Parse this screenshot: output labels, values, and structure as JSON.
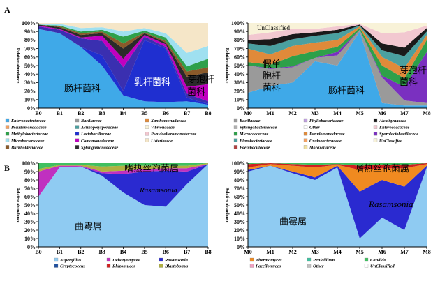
{
  "panel_letters": {
    "a": "A",
    "b": "B"
  },
  "chart_data": [
    {
      "id": "A-left",
      "type": "area",
      "stacked": true,
      "categories": [
        "B0",
        "B1",
        "B2",
        "B3",
        "B4",
        "B5",
        "B6",
        "B7",
        "B8"
      ],
      "ylim": [
        0,
        100
      ],
      "ytick_labels": [
        "0%",
        "10%",
        "20%",
        "30%",
        "40%",
        "50%",
        "60%",
        "70%",
        "80%",
        "90%",
        "100%"
      ],
      "ylabel": "Relative abundance",
      "series": [
        {
          "color": "#3fa9e8",
          "values": [
            93,
            88,
            72,
            50,
            15,
            8,
            7,
            8,
            4
          ]
        },
        {
          "color": "#1f2fd0",
          "values": [
            0,
            0,
            0,
            12,
            5,
            72,
            63,
            4,
            1
          ]
        },
        {
          "color": "#3a2fb0",
          "values": [
            3,
            4,
            10,
            17,
            28,
            4,
            2,
            5,
            3
          ]
        },
        {
          "color": "#c000c0",
          "values": [
            1,
            1,
            1,
            6,
            10,
            2,
            3,
            8,
            20
          ]
        },
        {
          "color": "#2a2a2a",
          "values": [
            1,
            2,
            3,
            3,
            12,
            2,
            2,
            12,
            14
          ]
        },
        {
          "color": "#8a5a2a",
          "values": [
            0,
            1,
            2,
            2,
            6,
            1,
            2,
            6,
            6
          ]
        },
        {
          "color": "#2ea04a",
          "values": [
            0,
            1,
            2,
            2,
            8,
            2,
            4,
            6,
            10
          ]
        },
        {
          "color": "#9fe0f0",
          "values": [
            1,
            2,
            4,
            3,
            6,
            3,
            5,
            16,
            15
          ]
        },
        {
          "color": "#f5e6c8",
          "values": [
            1,
            1,
            6,
            5,
            10,
            6,
            12,
            35,
            27
          ]
        }
      ],
      "annotations": [
        {
          "text": "肠杆菌科",
          "color": "#000000"
        },
        {
          "text": "乳杆菌科",
          "color": "#ffffff"
        },
        {
          "text": "芽孢杆",
          "color": "#000000"
        },
        {
          "text": "菌科",
          "color": "#000000"
        }
      ]
    },
    {
      "id": "A-right",
      "type": "area",
      "stacked": true,
      "categories": [
        "M0",
        "M1",
        "M2",
        "M3",
        "M4",
        "M5",
        "M6",
        "M7",
        "M8"
      ],
      "ylim": [
        0,
        100
      ],
      "ytick_labels": [
        "0%",
        "10%",
        "20%",
        "30%",
        "40%",
        "50%",
        "60%",
        "70%",
        "80%",
        "90%",
        "100%"
      ],
      "ylabel": "Relative abundance",
      "series": [
        {
          "color": "#3fa9e8",
          "values": [
            18,
            26,
            30,
            55,
            50,
            90,
            6,
            3,
            3
          ]
        },
        {
          "color": "#9a9a9a",
          "values": [
            32,
            20,
            18,
            4,
            12,
            2,
            30,
            6,
            3
          ]
        },
        {
          "color": "#7a30c0",
          "values": [
            0,
            1,
            1,
            0,
            4,
            0,
            2,
            16,
            60
          ]
        },
        {
          "color": "#2ea04a",
          "values": [
            4,
            4,
            12,
            8,
            6,
            2,
            12,
            10,
            14
          ]
        },
        {
          "color": "#e08a3a",
          "values": [
            16,
            12,
            12,
            10,
            8,
            2,
            10,
            12,
            6
          ]
        },
        {
          "color": "#4aa0a0",
          "values": [
            6,
            10,
            8,
            8,
            8,
            1,
            8,
            14,
            4
          ]
        },
        {
          "color": "#1a1a1a",
          "values": [
            4,
            8,
            6,
            4,
            4,
            1,
            8,
            10,
            4
          ]
        },
        {
          "color": "#f2c8d0",
          "values": [
            6,
            8,
            6,
            4,
            4,
            1,
            12,
            18,
            3
          ]
        },
        {
          "color": "#f8f2d8",
          "values": [
            14,
            11,
            7,
            7,
            4,
            1,
            12,
            11,
            3
          ]
        }
      ],
      "annotations": [
        {
          "text": "UnClassified",
          "color": "#000000"
        },
        {
          "text": "假单",
          "color": "#000000"
        },
        {
          "text": "胞杆",
          "color": "#000000"
        },
        {
          "text": "菌科",
          "color": "#000000"
        },
        {
          "text": "肠杆菌科",
          "color": "#000000"
        },
        {
          "text": "芽孢杆",
          "color": "#000000"
        },
        {
          "text": "菌科",
          "color": "#000000"
        }
      ]
    },
    {
      "id": "B-left",
      "type": "area",
      "stacked": true,
      "categories": [
        "B0",
        "B1",
        "B2",
        "B3",
        "B4",
        "B5",
        "B6",
        "B7",
        "B8"
      ],
      "ylim": [
        0,
        100
      ],
      "ytick_labels": [
        "0%",
        "10%",
        "20%",
        "30%",
        "40%",
        "50%",
        "60%",
        "70%",
        "80%",
        "90%",
        "100%"
      ],
      "ylabel": "Relative abundance",
      "series": [
        {
          "color": "#8fcbf2",
          "values": [
            60,
            95,
            96,
            85,
            65,
            50,
            48,
            75,
            99
          ]
        },
        {
          "color": "#2a2ad0",
          "values": [
            0,
            0,
            0,
            3,
            22,
            40,
            43,
            15,
            0
          ]
        },
        {
          "color": "#c030c0",
          "values": [
            30,
            2,
            1,
            2,
            4,
            3,
            3,
            4,
            0
          ]
        },
        {
          "color": "#b0b040",
          "values": [
            3,
            1,
            1,
            6,
            6,
            4,
            3,
            3,
            1
          ]
        },
        {
          "color": "#40c060",
          "values": [
            7,
            2,
            2,
            4,
            3,
            3,
            3,
            3,
            0
          ]
        }
      ],
      "annotations": [
        {
          "text": "嗜热丝孢菌属",
          "color": "#000000"
        },
        {
          "text": "Rasamsonia",
          "color": "#000000"
        },
        {
          "text": "曲霉属",
          "color": "#000000"
        }
      ]
    },
    {
      "id": "B-right",
      "type": "area",
      "stacked": true,
      "categories": [
        "M0",
        "M1",
        "M2",
        "M3",
        "M4",
        "M5",
        "M6",
        "M7",
        "M8"
      ],
      "ylim": [
        0,
        100
      ],
      "ytick_labels": [
        "0%",
        "10%",
        "20%",
        "30%",
        "40%",
        "50%",
        "60%",
        "70%",
        "80%",
        "90%",
        "100%"
      ],
      "ylabel": "Relative abundance",
      "series": [
        {
          "color": "#8fcbf2",
          "values": [
            90,
            97,
            88,
            80,
            95,
            10,
            35,
            20,
            95
          ]
        },
        {
          "color": "#2a2ad0",
          "values": [
            2,
            0,
            2,
            3,
            2,
            56,
            45,
            52,
            2
          ]
        },
        {
          "color": "#f08a20",
          "values": [
            3,
            2,
            7,
            12,
            1,
            26,
            14,
            22,
            2
          ]
        },
        {
          "color": "#d02020",
          "values": [
            4,
            1,
            2,
            3,
            1,
            5,
            4,
            4,
            1
          ]
        },
        {
          "color": "#40c060",
          "values": [
            1,
            0,
            1,
            2,
            1,
            3,
            2,
            2,
            0
          ]
        }
      ],
      "annotations": [
        {
          "text": "嗜热丝孢菌属",
          "color": "#000000"
        },
        {
          "text": "Rasamsonia",
          "color": "#000000"
        },
        {
          "text": "曲霉属",
          "color": "#000000"
        }
      ]
    }
  ],
  "legend_A_left": [
    {
      "label": "Enterobacteriaceae",
      "color": "#3fa9e8"
    },
    {
      "label": "Bacillaceae",
      "color": "#9a9a9a"
    },
    {
      "label": "Xanthomonadaceae",
      "color": "#e08a3a"
    },
    {
      "label": "Pseudomonadaceae",
      "color": "#f5a060"
    },
    {
      "label": "Actinopolysporaceae",
      "color": "#4aa0a0"
    },
    {
      "label": "Vibrionaceae",
      "color": "#f8f2d8"
    },
    {
      "label": "Methylobacteriaceae",
      "color": "#2ea04a"
    },
    {
      "label": "Lactobacillaceae",
      "color": "#1f2fd0"
    },
    {
      "label": "Pseudoalteromonadaceae",
      "color": "#f2c8d0"
    },
    {
      "label": "Microbacteriaceae",
      "color": "#9fe0f0"
    },
    {
      "label": "Comamonadaceae",
      "color": "#c000c0"
    },
    {
      "label": "Listeriaceae",
      "color": "#f5e6c8"
    },
    {
      "label": "Burkholderiaceae",
      "color": "#8a5a2a"
    },
    {
      "label": "Sphingomonadaceae",
      "color": "#2a2a2a"
    }
  ],
  "legend_A_right": [
    {
      "label": "Bacillaceae",
      "color": "#9a9a9a"
    },
    {
      "label": "Phyllobacteriaceae",
      "color": "#c0a0e0"
    },
    {
      "label": "Alcaligenaceae",
      "color": "#1a1a1a"
    },
    {
      "label": "Sphingobacteriaceae",
      "color": "#b0b0b0"
    },
    {
      "label": "Other",
      "color": "#ffffff"
    },
    {
      "label": "Enterococcaceae",
      "color": "#f2c8d0"
    },
    {
      "label": "Micrococcaceae",
      "color": "#2ea04a"
    },
    {
      "label": "Pseudomonadaceae",
      "color": "#e08a3a"
    },
    {
      "label": "Sporolactobacillaceae",
      "color": "#7a30c0"
    },
    {
      "label": "Flavobacteriaceae",
      "color": "#4aa0a0"
    },
    {
      "label": "Oxalobacteraceae",
      "color": "#f5a060"
    },
    {
      "label": "UnClassified",
      "color": "#f8f2d8"
    },
    {
      "label": "Paenibacillaceae",
      "color": "#b04040"
    },
    {
      "label": "Moraxellaceae",
      "color": "#f0e0a0"
    }
  ],
  "legend_B_left": [
    {
      "label": "Aspergillus",
      "color": "#8fcbf2"
    },
    {
      "label": "Debaryomyces",
      "color": "#c030c0"
    },
    {
      "label": "Rasamsonia",
      "color": "#2a2ad0"
    },
    {
      "label": "Cryptococcus",
      "color": "#2050a0"
    },
    {
      "label": "Rhizomucor",
      "color": "#d02020"
    },
    {
      "label": "Blastobotrys",
      "color": "#b0b040"
    }
  ],
  "legend_B_right": [
    {
      "label": "Thermomyces",
      "color": "#f08a20"
    },
    {
      "label": "Penicillium",
      "color": "#40c0a0"
    },
    {
      "label": "Candida",
      "color": "#40c060"
    },
    {
      "label": "Paecilomyces",
      "color": "#f0a0c0"
    },
    {
      "label": "Other",
      "color": "#c0c0c0"
    },
    {
      "label": "UnClassified",
      "color": "#ffffff"
    }
  ]
}
